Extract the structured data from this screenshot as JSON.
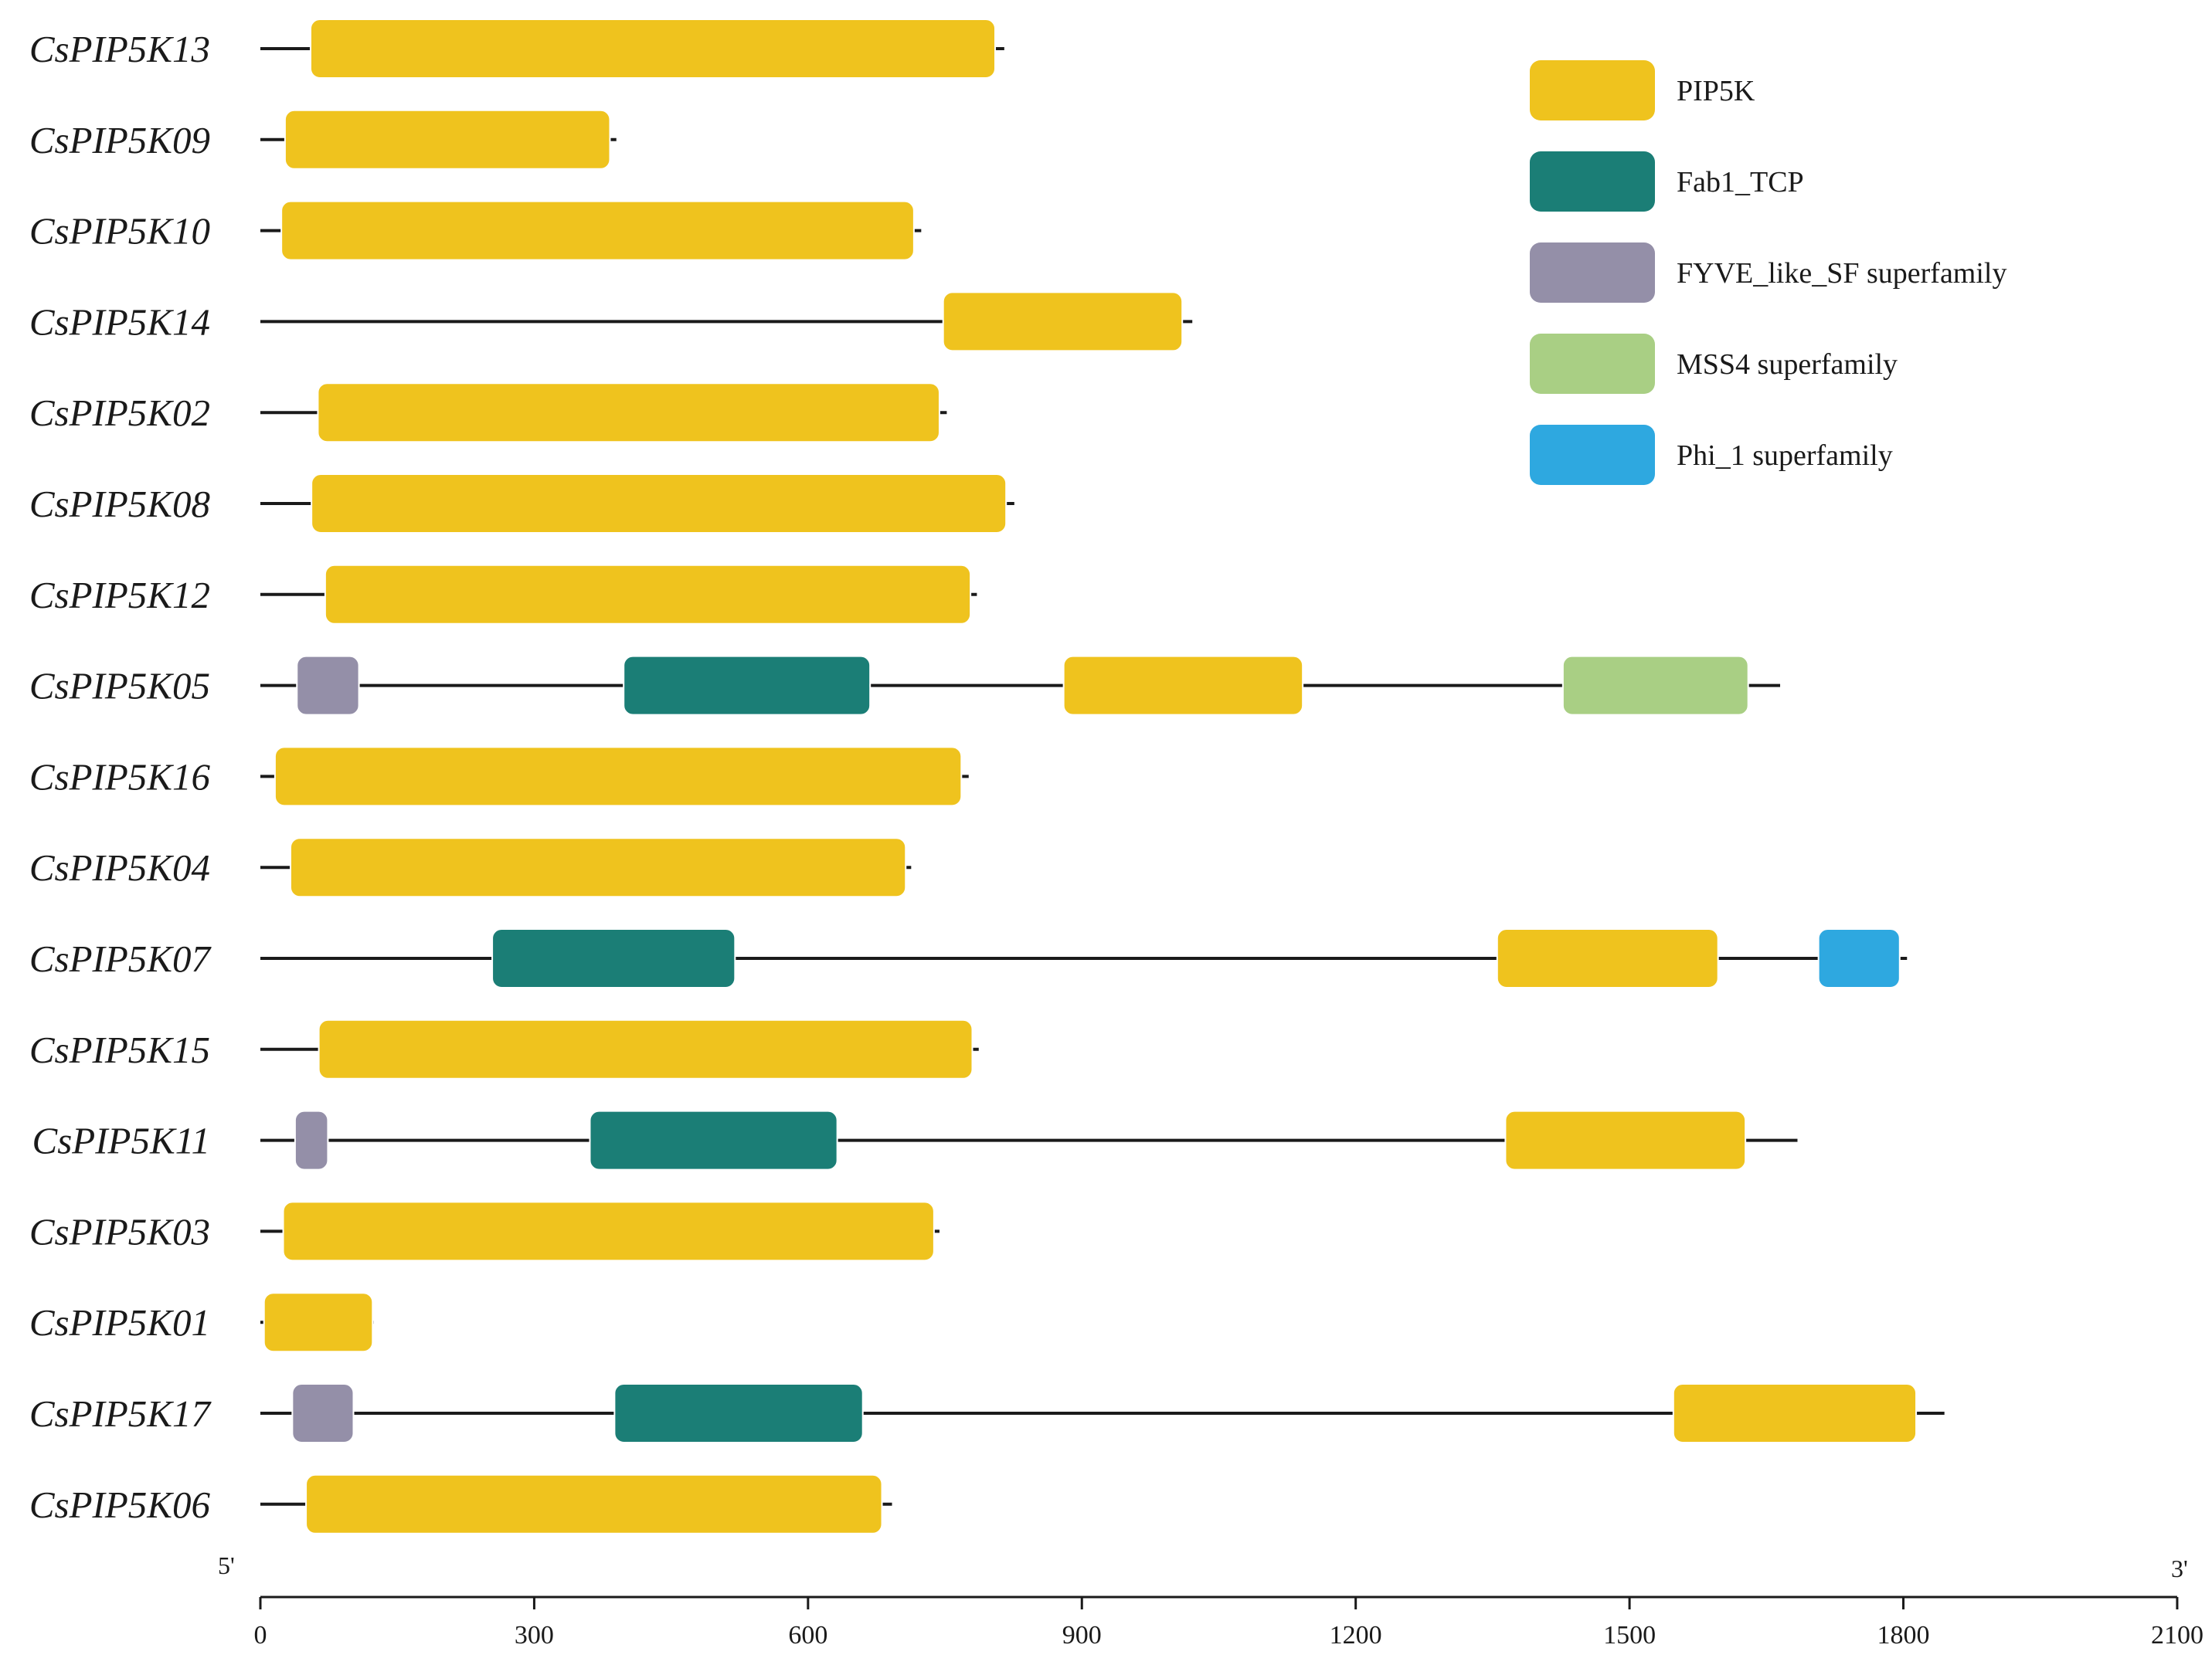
{
  "chart_data": {
    "type": "gene-domain-diagram",
    "title": "",
    "domains": [
      {
        "key": "PIP5K",
        "label": "PIP5K",
        "color": "#EFC31E"
      },
      {
        "key": "Fab1_TCP",
        "label": "Fab1_TCP",
        "color": "#1B7E76"
      },
      {
        "key": "FYVE",
        "label": "FYVE_like_SF superfamily",
        "color": "#948FA8"
      },
      {
        "key": "MSS4",
        "label": "MSS4 superfamily",
        "color": "#A9CF84"
      },
      {
        "key": "Phi_1",
        "label": "Phi_1 superfamily",
        "color": "#2EA8E0"
      }
    ],
    "genes": [
      {
        "name": "CsPIP5K13",
        "length": 815,
        "domains": [
          {
            "type": "PIP5K",
            "start": 55,
            "end": 805
          }
        ]
      },
      {
        "name": "CsPIP5K09",
        "length": 390,
        "domains": [
          {
            "type": "PIP5K",
            "start": 27,
            "end": 383
          }
        ]
      },
      {
        "name": "CsPIP5K10",
        "length": 724,
        "domains": [
          {
            "type": "PIP5K",
            "start": 23,
            "end": 716
          }
        ]
      },
      {
        "name": "CsPIP5K14",
        "length": 1021,
        "domains": [
          {
            "type": "PIP5K",
            "start": 748,
            "end": 1010
          }
        ]
      },
      {
        "name": "CsPIP5K02",
        "length": 752,
        "domains": [
          {
            "type": "PIP5K",
            "start": 63,
            "end": 744
          }
        ]
      },
      {
        "name": "CsPIP5K08",
        "length": 826,
        "domains": [
          {
            "type": "PIP5K",
            "start": 56,
            "end": 817
          }
        ]
      },
      {
        "name": "CsPIP5K12",
        "length": 785,
        "domains": [
          {
            "type": "PIP5K",
            "start": 71,
            "end": 778
          }
        ]
      },
      {
        "name": "CsPIP5K05",
        "length": 1665,
        "domains": [
          {
            "type": "FYVE",
            "start": 40,
            "end": 108
          },
          {
            "type": "Fab1_TCP",
            "start": 398,
            "end": 668
          },
          {
            "type": "PIP5K",
            "start": 880,
            "end": 1142
          },
          {
            "type": "MSS4",
            "start": 1427,
            "end": 1630
          }
        ]
      },
      {
        "name": "CsPIP5K16",
        "length": 776,
        "domains": [
          {
            "type": "PIP5K",
            "start": 16,
            "end": 768
          }
        ]
      },
      {
        "name": "CsPIP5K04",
        "length": 713,
        "domains": [
          {
            "type": "PIP5K",
            "start": 33,
            "end": 707
          }
        ]
      },
      {
        "name": "CsPIP5K07",
        "length": 1804,
        "domains": [
          {
            "type": "Fab1_TCP",
            "start": 254,
            "end": 520
          },
          {
            "type": "PIP5K",
            "start": 1355,
            "end": 1597
          },
          {
            "type": "Phi_1",
            "start": 1707,
            "end": 1796
          }
        ]
      },
      {
        "name": "CsPIP5K15",
        "length": 787,
        "domains": [
          {
            "type": "PIP5K",
            "start": 64,
            "end": 780
          }
        ]
      },
      {
        "name": "CsPIP5K11",
        "length": 1684,
        "domains": [
          {
            "type": "FYVE",
            "start": 38,
            "end": 74
          },
          {
            "type": "Fab1_TCP",
            "start": 361,
            "end": 632
          },
          {
            "type": "PIP5K",
            "start": 1364,
            "end": 1627
          }
        ]
      },
      {
        "name": "CsPIP5K03",
        "length": 744,
        "domains": [
          {
            "type": "PIP5K",
            "start": 25,
            "end": 738
          }
        ]
      },
      {
        "name": "CsPIP5K01",
        "length": 124,
        "domains": [
          {
            "type": "PIP5K",
            "start": 4,
            "end": 123
          }
        ]
      },
      {
        "name": "CsPIP5K17",
        "length": 1845,
        "domains": [
          {
            "type": "FYVE",
            "start": 35,
            "end": 102
          },
          {
            "type": "Fab1_TCP",
            "start": 388,
            "end": 660
          },
          {
            "type": "PIP5K",
            "start": 1548,
            "end": 1814
          }
        ]
      },
      {
        "name": "CsPIP5K06",
        "length": 692,
        "domains": [
          {
            "type": "PIP5K",
            "start": 50,
            "end": 681
          }
        ]
      }
    ],
    "axis": {
      "min": 0,
      "max": 2100,
      "ticks": [
        0,
        300,
        600,
        900,
        1200,
        1500,
        1800,
        2100
      ],
      "start_label": "5'",
      "end_label": "3'"
    }
  }
}
